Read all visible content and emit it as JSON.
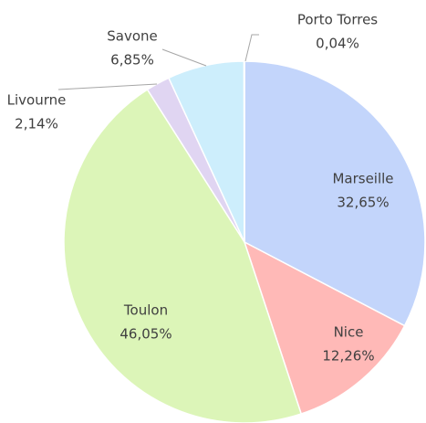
{
  "chart_data": {
    "type": "pie",
    "categories": [
      "Marseille",
      "Nice",
      "Toulon",
      "Livourne",
      "Savone",
      "Porto Torres"
    ],
    "values": [
      32.65,
      12.26,
      46.05,
      2.14,
      6.85,
      0.04
    ],
    "value_labels": [
      "32,65%",
      "12,26%",
      "46,05%",
      "2,14%",
      "6,85%",
      "0,04%"
    ],
    "colors": [
      "#c3d5fb",
      "#ffb9b7",
      "#dcf5b8",
      "#e0d5f2",
      "#cdeefc",
      "#b0b0b0"
    ]
  }
}
